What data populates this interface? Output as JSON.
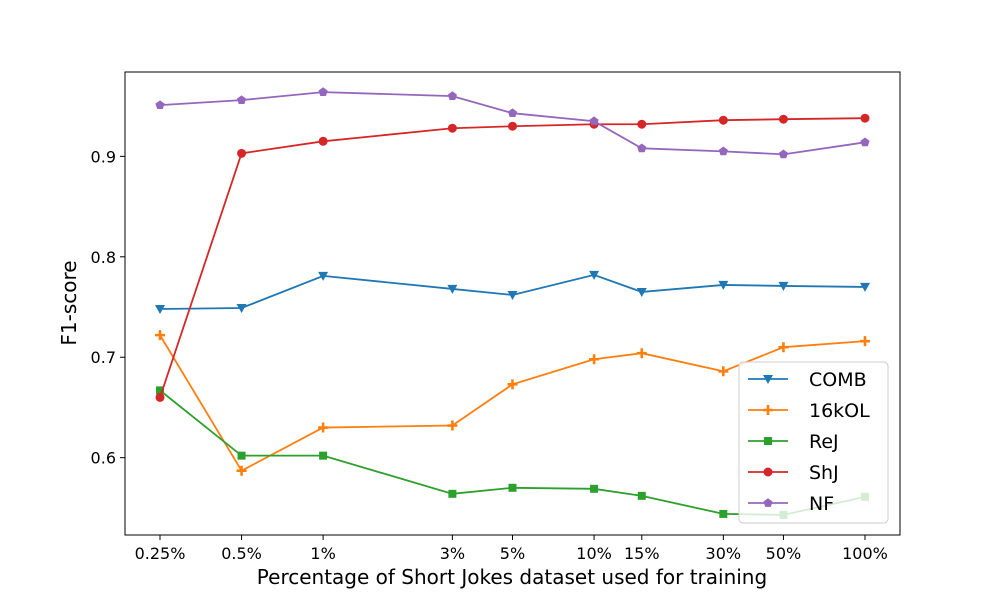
{
  "chart_data": {
    "type": "line",
    "title": "",
    "xlabel": "Percentage of Short Jokes dataset used for training",
    "ylabel": "F1-score",
    "x": [
      "0.25%",
      "0.5%",
      "1%",
      "3%",
      "5%",
      "10%",
      "15%",
      "30%",
      "50%",
      "100%"
    ],
    "x_values": [
      0.25,
      0.5,
      1,
      3,
      5,
      10,
      15,
      30,
      50,
      100
    ],
    "x_scale": "log",
    "ylim": [
      0.523,
      0.984
    ],
    "yticks": [
      0.6,
      0.7,
      0.8,
      0.9
    ],
    "ytick_labels": [
      "0.6",
      "0.7",
      "0.8",
      "0.9"
    ],
    "grid": false,
    "legend_position": "lower-right",
    "series": [
      {
        "name": "COMB",
        "color": "#1f77b4",
        "marker": "triangle-down",
        "values": [
          0.748,
          0.749,
          0.781,
          0.768,
          0.762,
          0.782,
          0.765,
          0.772,
          0.771,
          0.77
        ]
      },
      {
        "name": "16kOL",
        "color": "#ff7f0e",
        "marker": "plus",
        "values": [
          0.722,
          0.587,
          0.63,
          0.632,
          0.673,
          0.698,
          0.704,
          0.686,
          0.71,
          0.716
        ]
      },
      {
        "name": "ReJ",
        "color": "#2ca02c",
        "marker": "square",
        "values": [
          0.667,
          0.602,
          0.602,
          0.564,
          0.57,
          0.569,
          0.562,
          0.544,
          0.543,
          0.561
        ]
      },
      {
        "name": "ShJ",
        "color": "#d62728",
        "marker": "circle",
        "values": [
          0.66,
          0.903,
          0.915,
          0.928,
          0.93,
          0.932,
          0.932,
          0.936,
          0.937,
          0.938
        ]
      },
      {
        "name": "NF",
        "color": "#9467bd",
        "marker": "pentagon",
        "values": [
          0.951,
          0.956,
          0.964,
          0.96,
          0.943,
          0.935,
          0.908,
          0.905,
          0.902,
          0.914
        ]
      }
    ]
  }
}
